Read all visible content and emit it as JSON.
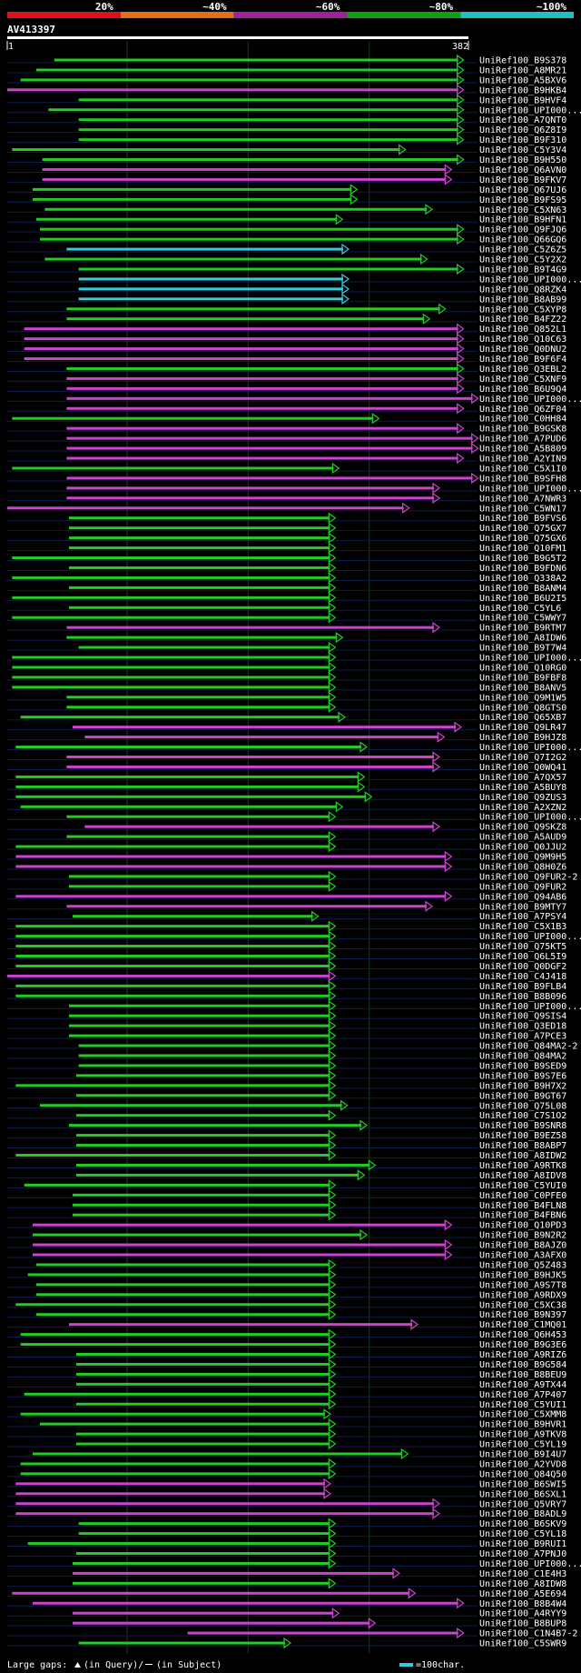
{
  "chart_data": {
    "type": "alignment-overview",
    "title": "AV413397",
    "query_length": 382,
    "axis": {
      "start_label": "1",
      "end_label": "382"
    },
    "identity_scale": [
      {
        "label": "20%",
        "color": "#e0101a"
      },
      {
        "label": "~40%",
        "color": "#e07010"
      },
      {
        "label": "~60%",
        "color": "#a020a0"
      },
      {
        "label": "~80%",
        "color": "#10a010"
      },
      {
        "label": "~100%",
        "color": "#20c0c0"
      }
    ],
    "series_colors": {
      "cyan": "#33ccdd",
      "green": "#22cc22",
      "magenta": "#cc44cc"
    },
    "legend": {
      "large_gaps": "Large gaps:",
      "query_part": "(in Query)/",
      "subject_part": "(in Subject)",
      "scale_text": "=100char."
    },
    "hits": [
      {
        "id": "UniRef100_B9S378",
        "start": 40,
        "end": 378,
        "color": "green"
      },
      {
        "id": "UniRef100_A8MR21",
        "start": 25,
        "end": 378,
        "color": "green"
      },
      {
        "id": "UniRef100_A5BXV6",
        "start": 12,
        "end": 378,
        "color": "green"
      },
      {
        "id": "UniRef100_B9HKB4",
        "start": 1,
        "end": 378,
        "color": "magenta"
      },
      {
        "id": "UniRef100_B9HVF4",
        "start": 60,
        "end": 378,
        "color": "green"
      },
      {
        "id": "UniRef100_UPI000...",
        "start": 35,
        "end": 378,
        "color": "green"
      },
      {
        "id": "UniRef100_A7QNT0",
        "start": 60,
        "end": 378,
        "color": "green"
      },
      {
        "id": "UniRef100_Q6Z8I9",
        "start": 60,
        "end": 378,
        "color": "green"
      },
      {
        "id": "UniRef100_B9F310",
        "start": 60,
        "end": 378,
        "color": "green"
      },
      {
        "id": "UniRef100_C5Y3V4",
        "start": 5,
        "end": 330,
        "color": "green"
      },
      {
        "id": "UniRef100_B9H550",
        "start": 30,
        "end": 378,
        "color": "green"
      },
      {
        "id": "UniRef100_Q6AVN0",
        "start": 30,
        "end": 368,
        "color": "magenta"
      },
      {
        "id": "UniRef100_B9FKV7",
        "start": 30,
        "end": 368,
        "color": "magenta"
      },
      {
        "id": "UniRef100_Q67UJ6",
        "start": 22,
        "end": 290,
        "color": "green"
      },
      {
        "id": "UniRef100_B9FS95",
        "start": 22,
        "end": 290,
        "color": "green"
      },
      {
        "id": "UniRef100_C5XN63",
        "start": 32,
        "end": 352,
        "color": "green"
      },
      {
        "id": "UniRef100_B9HFN1",
        "start": 25,
        "end": 278,
        "color": "green"
      },
      {
        "id": "UniRef100_Q9FJQ6",
        "start": 28,
        "end": 378,
        "color": "green"
      },
      {
        "id": "UniRef100_Q66GQ6",
        "start": 28,
        "end": 378,
        "color": "green"
      },
      {
        "id": "UniRef100_C5Z6Z5",
        "start": 50,
        "end": 283,
        "color": "cyan"
      },
      {
        "id": "UniRef100_C5Y2X2",
        "start": 32,
        "end": 348,
        "color": "green"
      },
      {
        "id": "UniRef100_B9T4G9",
        "start": 60,
        "end": 378,
        "color": "green"
      },
      {
        "id": "UniRef100_UPI000...",
        "start": 60,
        "end": 283,
        "color": "cyan"
      },
      {
        "id": "UniRef100_Q8RZK4",
        "start": 60,
        "end": 283,
        "color": "cyan"
      },
      {
        "id": "UniRef100_B8AB99",
        "start": 60,
        "end": 283,
        "color": "cyan"
      },
      {
        "id": "UniRef100_C5XYP8",
        "start": 50,
        "end": 363,
        "color": "green"
      },
      {
        "id": "UniRef100_B4FZ22",
        "start": 50,
        "end": 350,
        "color": "green"
      },
      {
        "id": "UniRef100_Q852L1",
        "start": 15,
        "end": 378,
        "color": "magenta"
      },
      {
        "id": "UniRef100_Q10C63",
        "start": 15,
        "end": 378,
        "color": "magenta"
      },
      {
        "id": "UniRef100_Q0DNU2",
        "start": 15,
        "end": 378,
        "color": "magenta"
      },
      {
        "id": "UniRef100_B9F6F4",
        "start": 15,
        "end": 378,
        "color": "magenta"
      },
      {
        "id": "UniRef100_Q3EBL2",
        "start": 50,
        "end": 378,
        "color": "green"
      },
      {
        "id": "UniRef100_C5XNF9",
        "start": 50,
        "end": 378,
        "color": "magenta"
      },
      {
        "id": "UniRef100_B6U9Q4",
        "start": 50,
        "end": 378,
        "color": "magenta"
      },
      {
        "id": "UniRef100_UPI000...",
        "start": 50,
        "end": 390,
        "color": "magenta"
      },
      {
        "id": "UniRef100_Q6ZF04",
        "start": 50,
        "end": 378,
        "color": "magenta"
      },
      {
        "id": "UniRef100_C0HH84",
        "start": 5,
        "end": 308,
        "color": "green"
      },
      {
        "id": "UniRef100_B9GSK8",
        "start": 50,
        "end": 378,
        "color": "magenta"
      },
      {
        "id": "UniRef100_A7PUD6",
        "start": 50,
        "end": 390,
        "color": "magenta"
      },
      {
        "id": "UniRef100_A5B809",
        "start": 50,
        "end": 390,
        "color": "magenta"
      },
      {
        "id": "UniRef100_A2YIN9",
        "start": 50,
        "end": 378,
        "color": "magenta"
      },
      {
        "id": "UniRef100_C5X1I0",
        "start": 5,
        "end": 275,
        "color": "green"
      },
      {
        "id": "UniRef100_B9SFH8",
        "start": 50,
        "end": 390,
        "color": "magenta"
      },
      {
        "id": "UniRef100_UPI000...",
        "start": 50,
        "end": 358,
        "color": "magenta"
      },
      {
        "id": "UniRef100_A7NWR3",
        "start": 50,
        "end": 358,
        "color": "magenta"
      },
      {
        "id": "UniRef100_C5WN17",
        "start": 1,
        "end": 333,
        "color": "magenta"
      },
      {
        "id": "UniRef100_B9FVS6",
        "start": 52,
        "end": 272,
        "color": "green"
      },
      {
        "id": "UniRef100_Q75GX7",
        "start": 52,
        "end": 272,
        "color": "green"
      },
      {
        "id": "UniRef100_Q75GX6",
        "start": 52,
        "end": 272,
        "color": "green"
      },
      {
        "id": "UniRef100_Q10FM1",
        "start": 52,
        "end": 272,
        "color": "green"
      },
      {
        "id": "UniRef100_B9G5T2",
        "start": 5,
        "end": 272,
        "color": "green"
      },
      {
        "id": "UniRef100_B9FDN6",
        "start": 52,
        "end": 272,
        "color": "green"
      },
      {
        "id": "UniRef100_Q338A2",
        "start": 5,
        "end": 272,
        "color": "green"
      },
      {
        "id": "UniRef100_B8ANM4",
        "start": 52,
        "end": 272,
        "color": "green"
      },
      {
        "id": "UniRef100_B6U2I5",
        "start": 5,
        "end": 272,
        "color": "green"
      },
      {
        "id": "UniRef100_C5YL6",
        "start": 52,
        "end": 272,
        "color": "green"
      },
      {
        "id": "UniRef100_C5WWY7",
        "start": 5,
        "end": 272,
        "color": "green"
      },
      {
        "id": "UniRef100_B9RTM7",
        "start": 50,
        "end": 358,
        "color": "magenta"
      },
      {
        "id": "UniRef100_A8IDW6",
        "start": 50,
        "end": 278,
        "color": "green"
      },
      {
        "id": "UniRef100_B9T7W4",
        "start": 60,
        "end": 272,
        "color": "green"
      },
      {
        "id": "UniRef100_UPI000...",
        "start": 5,
        "end": 272,
        "color": "green"
      },
      {
        "id": "UniRef100_Q10RG0",
        "start": 5,
        "end": 272,
        "color": "green"
      },
      {
        "id": "UniRef100_B9FBF8",
        "start": 5,
        "end": 272,
        "color": "green"
      },
      {
        "id": "UniRef100_B8ANV5",
        "start": 5,
        "end": 272,
        "color": "green"
      },
      {
        "id": "UniRef100_Q9M1W5",
        "start": 50,
        "end": 272,
        "color": "green"
      },
      {
        "id": "UniRef100_Q8GTS0",
        "start": 50,
        "end": 272,
        "color": "green"
      },
      {
        "id": "UniRef100_Q65XB7",
        "start": 12,
        "end": 280,
        "color": "green"
      },
      {
        "id": "UniRef100_Q9LR47",
        "start": 55,
        "end": 376,
        "color": "magenta"
      },
      {
        "id": "UniRef100_B9HJZ8",
        "start": 65,
        "end": 362,
        "color": "magenta"
      },
      {
        "id": "UniRef100_UPI000...",
        "start": 8,
        "end": 298,
        "color": "green"
      },
      {
        "id": "UniRef100_Q7I2G2",
        "start": 50,
        "end": 358,
        "color": "magenta"
      },
      {
        "id": "UniRef100_Q0WQ41",
        "start": 50,
        "end": 358,
        "color": "magenta"
      },
      {
        "id": "UniRef100_A7QX57",
        "start": 8,
        "end": 296,
        "color": "green"
      },
      {
        "id": "UniRef100_A5BUY8",
        "start": 8,
        "end": 296,
        "color": "green"
      },
      {
        "id": "UniRef100_Q9ZUS3",
        "start": 8,
        "end": 302,
        "color": "green"
      },
      {
        "id": "UniRef100_A2XZN2",
        "start": 12,
        "end": 278,
        "color": "green"
      },
      {
        "id": "UniRef100_UPI000...",
        "start": 50,
        "end": 272,
        "color": "green"
      },
      {
        "id": "UniRef100_Q9SKZ8",
        "start": 65,
        "end": 358,
        "color": "magenta"
      },
      {
        "id": "UniRef100_A5AUD9",
        "start": 50,
        "end": 272,
        "color": "green"
      },
      {
        "id": "UniRef100_Q0JJU2",
        "start": 8,
        "end": 272,
        "color": "green"
      },
      {
        "id": "UniRef100_Q9M9H5",
        "start": 8,
        "end": 368,
        "color": "magenta"
      },
      {
        "id": "UniRef100_Q8H0Z6",
        "start": 8,
        "end": 368,
        "color": "magenta"
      },
      {
        "id": "UniRef100_Q9FUR2-2",
        "start": 52,
        "end": 272,
        "color": "green"
      },
      {
        "id": "UniRef100_Q9FUR2",
        "start": 52,
        "end": 272,
        "color": "green"
      },
      {
        "id": "UniRef100_Q94AB6",
        "start": 8,
        "end": 368,
        "color": "magenta"
      },
      {
        "id": "UniRef100_B9MTY7",
        "start": 50,
        "end": 352,
        "color": "magenta"
      },
      {
        "id": "UniRef100_A7PSY4",
        "start": 55,
        "end": 258,
        "color": "green"
      },
      {
        "id": "UniRef100_C5X1B3",
        "start": 8,
        "end": 272,
        "color": "green"
      },
      {
        "id": "UniRef100_UPI000...",
        "start": 8,
        "end": 272,
        "color": "green"
      },
      {
        "id": "UniRef100_Q75KT5",
        "start": 8,
        "end": 272,
        "color": "green"
      },
      {
        "id": "UniRef100_Q6L5I9",
        "start": 8,
        "end": 272,
        "color": "green"
      },
      {
        "id": "UniRef100_Q0DGF2",
        "start": 8,
        "end": 272,
        "color": "green"
      },
      {
        "id": "UniRef100_C4J418",
        "start": 1,
        "end": 272,
        "color": "magenta"
      },
      {
        "id": "UniRef100_B9FLB4",
        "start": 8,
        "end": 272,
        "color": "green"
      },
      {
        "id": "UniRef100_B8B096",
        "start": 8,
        "end": 272,
        "color": "green"
      },
      {
        "id": "UniRef100_UPI000...",
        "start": 52,
        "end": 272,
        "color": "green"
      },
      {
        "id": "UniRef100_Q9SIS4",
        "start": 52,
        "end": 272,
        "color": "green"
      },
      {
        "id": "UniRef100_Q3ED18",
        "start": 52,
        "end": 272,
        "color": "green"
      },
      {
        "id": "UniRef100_A7PCE3",
        "start": 52,
        "end": 272,
        "color": "green"
      },
      {
        "id": "UniRef100_Q84MA2-2",
        "start": 60,
        "end": 272,
        "color": "green"
      },
      {
        "id": "UniRef100_Q84MA2",
        "start": 60,
        "end": 272,
        "color": "green"
      },
      {
        "id": "UniRef100_B9SED9",
        "start": 60,
        "end": 272,
        "color": "green"
      },
      {
        "id": "UniRef100_B9S7E6",
        "start": 58,
        "end": 272,
        "color": "green"
      },
      {
        "id": "UniRef100_B9H7X2",
        "start": 8,
        "end": 272,
        "color": "green"
      },
      {
        "id": "UniRef100_B9GT67",
        "start": 58,
        "end": 272,
        "color": "green"
      },
      {
        "id": "UniRef100_Q75L08",
        "start": 28,
        "end": 282,
        "color": "green"
      },
      {
        "id": "UniRef100_C7S1O2",
        "start": 58,
        "end": 272,
        "color": "green"
      },
      {
        "id": "UniRef100_B9SNR8",
        "start": 52,
        "end": 298,
        "color": "green"
      },
      {
        "id": "UniRef100_B9EZ58",
        "start": 58,
        "end": 272,
        "color": "green"
      },
      {
        "id": "UniRef100_B8ABP7",
        "start": 58,
        "end": 272,
        "color": "green"
      },
      {
        "id": "UniRef100_A8IDW2",
        "start": 8,
        "end": 272,
        "color": "green"
      },
      {
        "id": "UniRef100_A9RTK8",
        "start": 58,
        "end": 305,
        "color": "green"
      },
      {
        "id": "UniRef100_A8IDV8",
        "start": 58,
        "end": 296,
        "color": "green"
      },
      {
        "id": "UniRef100_C5YUI0",
        "start": 15,
        "end": 272,
        "color": "green"
      },
      {
        "id": "UniRef100_C0PFE0",
        "start": 55,
        "end": 272,
        "color": "green"
      },
      {
        "id": "UniRef100_B4FLN8",
        "start": 55,
        "end": 272,
        "color": "green"
      },
      {
        "id": "UniRef100_B4FBN6",
        "start": 55,
        "end": 272,
        "color": "green"
      },
      {
        "id": "UniRef100_Q10PD3",
        "start": 22,
        "end": 368,
        "color": "magenta"
      },
      {
        "id": "UniRef100_B9N2R2",
        "start": 22,
        "end": 298,
        "color": "green"
      },
      {
        "id": "UniRef100_B8AJZ0",
        "start": 22,
        "end": 368,
        "color": "magenta"
      },
      {
        "id": "UniRef100_A3AFX0",
        "start": 22,
        "end": 368,
        "color": "magenta"
      },
      {
        "id": "UniRef100_Q5Z483",
        "start": 25,
        "end": 272,
        "color": "green"
      },
      {
        "id": "UniRef100_B9HJK5",
        "start": 18,
        "end": 272,
        "color": "green"
      },
      {
        "id": "UniRef100_A9S7T8",
        "start": 25,
        "end": 272,
        "color": "green"
      },
      {
        "id": "UniRef100_A9RDX9",
        "start": 25,
        "end": 272,
        "color": "green"
      },
      {
        "id": "UniRef100_C5XC38",
        "start": 8,
        "end": 272,
        "color": "green"
      },
      {
        "id": "UniRef100_B9N397",
        "start": 25,
        "end": 272,
        "color": "green"
      },
      {
        "id": "UniRef100_C1MQ01",
        "start": 52,
        "end": 340,
        "color": "magenta"
      },
      {
        "id": "UniRef100_Q6H453",
        "start": 12,
        "end": 272,
        "color": "green"
      },
      {
        "id": "UniRef100_B9G3E6",
        "start": 12,
        "end": 272,
        "color": "green"
      },
      {
        "id": "UniRef100_A9RIZ6",
        "start": 58,
        "end": 272,
        "color": "green"
      },
      {
        "id": "UniRef100_B9G584",
        "start": 58,
        "end": 272,
        "color": "green"
      },
      {
        "id": "UniRef100_B8BEU9",
        "start": 58,
        "end": 272,
        "color": "green"
      },
      {
        "id": "UniRef100_A9TX44",
        "start": 58,
        "end": 272,
        "color": "green"
      },
      {
        "id": "UniRef100_A7P407",
        "start": 15,
        "end": 272,
        "color": "green"
      },
      {
        "id": "UniRef100_C5YUI1",
        "start": 58,
        "end": 272,
        "color": "green"
      },
      {
        "id": "UniRef100_C5XMM8",
        "start": 12,
        "end": 268,
        "color": "green"
      },
      {
        "id": "UniRef100_B9HVR1",
        "start": 28,
        "end": 272,
        "color": "green"
      },
      {
        "id": "UniRef100_A9TKV8",
        "start": 58,
        "end": 272,
        "color": "green"
      },
      {
        "id": "UniRef100_C5YL19",
        "start": 58,
        "end": 272,
        "color": "green"
      },
      {
        "id": "UniRef100_B9I4U7",
        "start": 22,
        "end": 332,
        "color": "green"
      },
      {
        "id": "UniRef100_A2YVD8",
        "start": 12,
        "end": 272,
        "color": "green"
      },
      {
        "id": "UniRef100_Q84Q50",
        "start": 12,
        "end": 272,
        "color": "green"
      },
      {
        "id": "UniRef100_B6SWI5",
        "start": 8,
        "end": 268,
        "color": "magenta"
      },
      {
        "id": "UniRef100_B6SXL1",
        "start": 8,
        "end": 268,
        "color": "magenta"
      },
      {
        "id": "UniRef100_Q5VRY7",
        "start": 8,
        "end": 358,
        "color": "magenta"
      },
      {
        "id": "UniRef100_B8ADL9",
        "start": 8,
        "end": 358,
        "color": "magenta"
      },
      {
        "id": "UniRef100_B6SKV9",
        "start": 60,
        "end": 272,
        "color": "green"
      },
      {
        "id": "UniRef100_C5YL18",
        "start": 60,
        "end": 272,
        "color": "green"
      },
      {
        "id": "UniRef100_B9RUI1",
        "start": 18,
        "end": 272,
        "color": "green"
      },
      {
        "id": "UniRef100_A7PNJ0",
        "start": 58,
        "end": 272,
        "color": "green"
      },
      {
        "id": "UniRef100_UPI000...",
        "start": 55,
        "end": 272,
        "color": "green"
      },
      {
        "id": "UniRef100_C1E4H3",
        "start": 55,
        "end": 325,
        "color": "magenta"
      },
      {
        "id": "UniRef100_A8IDW8",
        "start": 55,
        "end": 272,
        "color": "green"
      },
      {
        "id": "UniRef100_A5E694",
        "start": 5,
        "end": 338,
        "color": "magenta"
      },
      {
        "id": "UniRef100_B8B4W4",
        "start": 22,
        "end": 378,
        "color": "magenta"
      },
      {
        "id": "UniRef100_A4RYY9",
        "start": 55,
        "end": 275,
        "color": "magenta"
      },
      {
        "id": "UniRef100_B8BUP8",
        "start": 55,
        "end": 305,
        "color": "magenta"
      },
      {
        "id": "UniRef100_C1N4B7-2",
        "start": 150,
        "end": 378,
        "color": "magenta"
      },
      {
        "id": "UniRef100_C5SWR9",
        "start": 60,
        "end": 235,
        "color": "green"
      }
    ]
  }
}
